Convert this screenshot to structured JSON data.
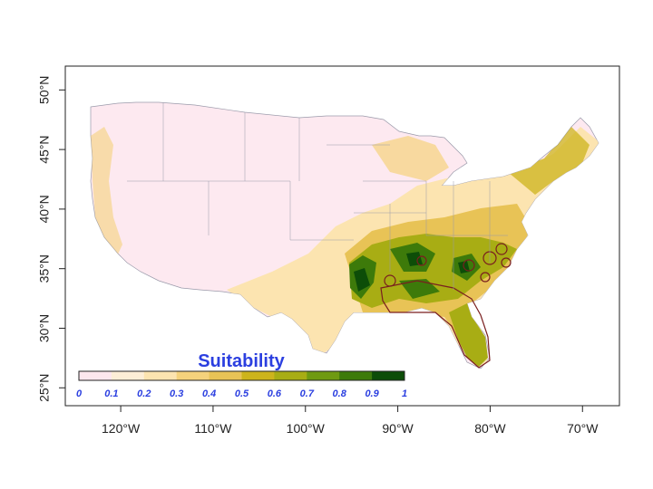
{
  "map": {
    "x_axis_labels": [
      "120°W",
      "110°W",
      "100°W",
      "90°W",
      "80°W",
      "70°W"
    ],
    "y_axis_labels": [
      "25°N",
      "30°N",
      "35°N",
      "40°N",
      "45°N",
      "50°N"
    ],
    "x_axis_lons": [
      -120,
      -110,
      -100,
      -90,
      -80,
      -70
    ],
    "y_axis_lats": [
      25,
      30,
      35,
      40,
      45,
      50
    ],
    "x_range": [
      -126,
      -66
    ],
    "y_range": [
      23.5,
      52
    ]
  },
  "legend": {
    "title": "Suitability",
    "labels": [
      "0",
      "0.1",
      "0.2",
      "0.3",
      "0.4",
      "0.5",
      "0.6",
      "0.7",
      "0.8",
      "0.9",
      "1"
    ],
    "colors": [
      "#ffffff",
      "#fde7ee",
      "#fdeed6",
      "#fce4b0",
      "#f5d27c",
      "#e8c356",
      "#cdb41c",
      "#a8ad14",
      "#6f9a12",
      "#3d7a0a",
      "#0d4d08"
    ]
  }
}
